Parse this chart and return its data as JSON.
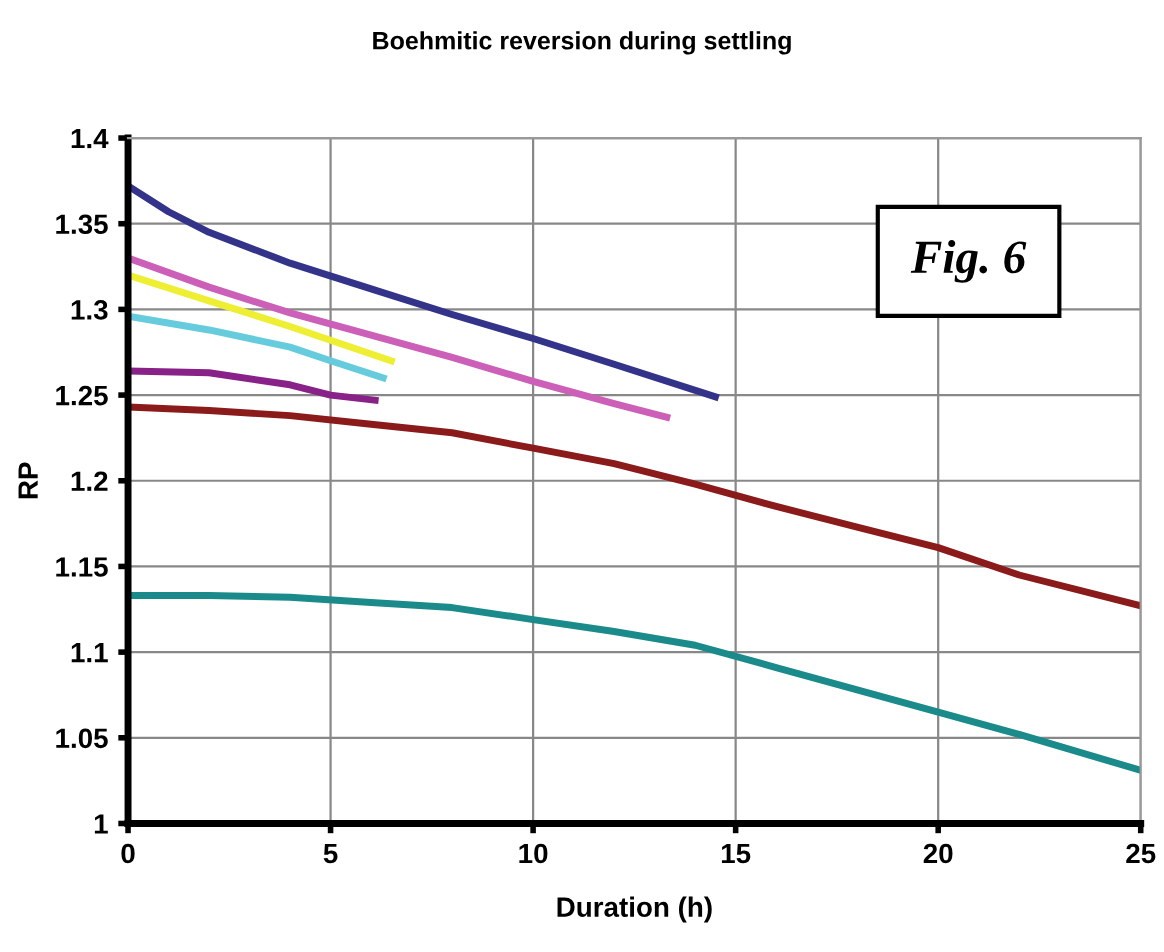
{
  "chart_data": {
    "type": "line",
    "title": "Boehmitic reversion during settling",
    "xlabel": "Duration (h)",
    "ylabel": "RP",
    "annotations": [
      "Fig. 6"
    ],
    "xlim": [
      0,
      25
    ],
    "xticks": [
      0,
      5,
      10,
      15,
      20,
      25
    ],
    "ylim": [
      1,
      1.4
    ],
    "yticks": [
      1,
      1.05,
      1.1,
      1.15,
      1.2,
      1.25,
      1.3,
      1.35,
      1.4
    ],
    "grid": true,
    "legend": false,
    "marker": "none",
    "line_style": "solid",
    "series": [
      {
        "color": "#33338a",
        "x": [
          0,
          1,
          2,
          4,
          6,
          8,
          10,
          12,
          14.5
        ],
        "values": [
          1.372,
          1.357,
          1.345,
          1.327,
          1.312,
          1.297,
          1.283,
          1.268,
          1.249
        ]
      },
      {
        "color": "#cc5fb8",
        "x": [
          0,
          2,
          4,
          6,
          8,
          10,
          12,
          13.3
        ],
        "values": [
          1.33,
          1.313,
          1.298,
          1.285,
          1.272,
          1.258,
          1.245,
          1.237
        ]
      },
      {
        "color": "#eeee33",
        "x": [
          0,
          2,
          4,
          6.5
        ],
        "values": [
          1.32,
          1.305,
          1.29,
          1.27
        ]
      },
      {
        "color": "#66ccdd",
        "x": [
          0,
          2,
          4,
          5,
          6.3
        ],
        "values": [
          1.296,
          1.288,
          1.278,
          1.27,
          1.26
        ]
      },
      {
        "color": "#882288",
        "x": [
          0,
          2,
          4,
          5,
          6.1
        ],
        "values": [
          1.264,
          1.263,
          1.256,
          1.25,
          1.247
        ]
      },
      {
        "color": "#8b1a1a",
        "x": [
          0,
          2,
          4,
          6,
          8,
          10,
          12,
          14,
          16,
          18,
          20,
          22,
          25
        ],
        "values": [
          1.243,
          1.241,
          1.238,
          1.233,
          1.228,
          1.219,
          1.21,
          1.198,
          1.185,
          1.173,
          1.161,
          1.145,
          1.127
        ]
      },
      {
        "color": "#1a8a8a",
        "x": [
          0,
          2,
          4,
          6,
          8,
          10,
          12,
          14,
          16,
          18,
          20,
          22,
          25
        ],
        "values": [
          1.133,
          1.133,
          1.132,
          1.129,
          1.126,
          1.119,
          1.112,
          1.104,
          1.091,
          1.078,
          1.065,
          1.052,
          1.031
        ]
      }
    ]
  }
}
